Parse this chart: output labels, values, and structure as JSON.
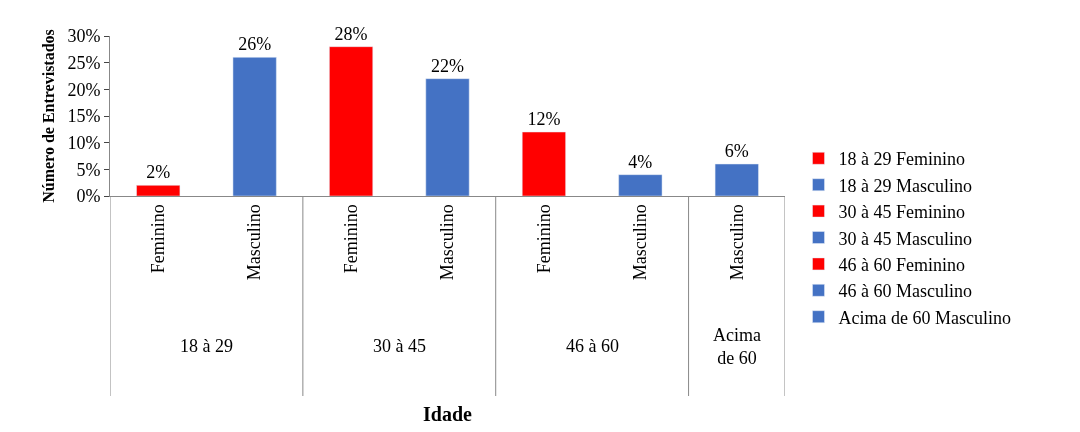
{
  "chart_data": {
    "type": "bar",
    "ylabel": "Número de Entrevistados",
    "categories": [
      "Feminino",
      "Masculino",
      "Feminino",
      "Masculino",
      "Feminino",
      "Masculino",
      "Masculino"
    ],
    "annotations": [
      "18 à 29",
      "30 à 45",
      "46 à 60",
      "Acima de 60",
      "Idade"
    ],
    "series": [
      {
        "name": "18 à 29 Feminino",
        "color": "#ff0000",
        "values": [
          2,
          null,
          null,
          null,
          null,
          null,
          null
        ],
        "value_labels": [
          "2%",
          null,
          null,
          null,
          null,
          null,
          null
        ]
      },
      {
        "name": "18 à 29 Masculino",
        "color": "#4472c4",
        "values": [
          null,
          26,
          null,
          null,
          null,
          null,
          null
        ],
        "value_labels": [
          null,
          "26%",
          null,
          null,
          null,
          null,
          null
        ]
      },
      {
        "name": "30 à 45 Feminino",
        "color": "#ff0000",
        "values": [
          null,
          null,
          28,
          null,
          null,
          null,
          null
        ],
        "value_labels": [
          null,
          null,
          "28%",
          null,
          null,
          null,
          null
        ]
      },
      {
        "name": "30 à 45 Masculino",
        "color": "#4472c4",
        "values": [
          null,
          null,
          null,
          22,
          null,
          null,
          null
        ],
        "value_labels": [
          null,
          null,
          null,
          "22%",
          null,
          null,
          null
        ]
      },
      {
        "name": "46 à 60 Feminino",
        "color": "#ff0000",
        "values": [
          null,
          null,
          null,
          null,
          12,
          null,
          null
        ],
        "value_labels": [
          null,
          null,
          null,
          null,
          "12%",
          null,
          null
        ]
      },
      {
        "name": "46 à 60 Masculino",
        "color": "#4472c4",
        "values": [
          null,
          null,
          null,
          null,
          null,
          4,
          null
        ],
        "value_labels": [
          null,
          null,
          null,
          null,
          null,
          "4%",
          null
        ]
      },
      {
        "name": "Acima de 60 Masculino",
        "color": "#4472c4",
        "values": [
          null,
          null,
          null,
          null,
          null,
          null,
          6
        ],
        "value_labels": [
          null,
          null,
          null,
          null,
          null,
          null,
          "6%"
        ]
      }
    ],
    "ylim": [
      0,
      30
    ],
    "yticks": [
      {
        "value": 0,
        "label": "0%"
      },
      {
        "value": 5,
        "label": "5%"
      },
      {
        "value": 10,
        "label": "10%"
      },
      {
        "value": 15,
        "label": "15%"
      },
      {
        "value": 20,
        "label": "20%"
      },
      {
        "value": 25,
        "label": "25%"
      },
      {
        "value": 30,
        "label": "30%"
      }
    ],
    "legend": "right"
  }
}
